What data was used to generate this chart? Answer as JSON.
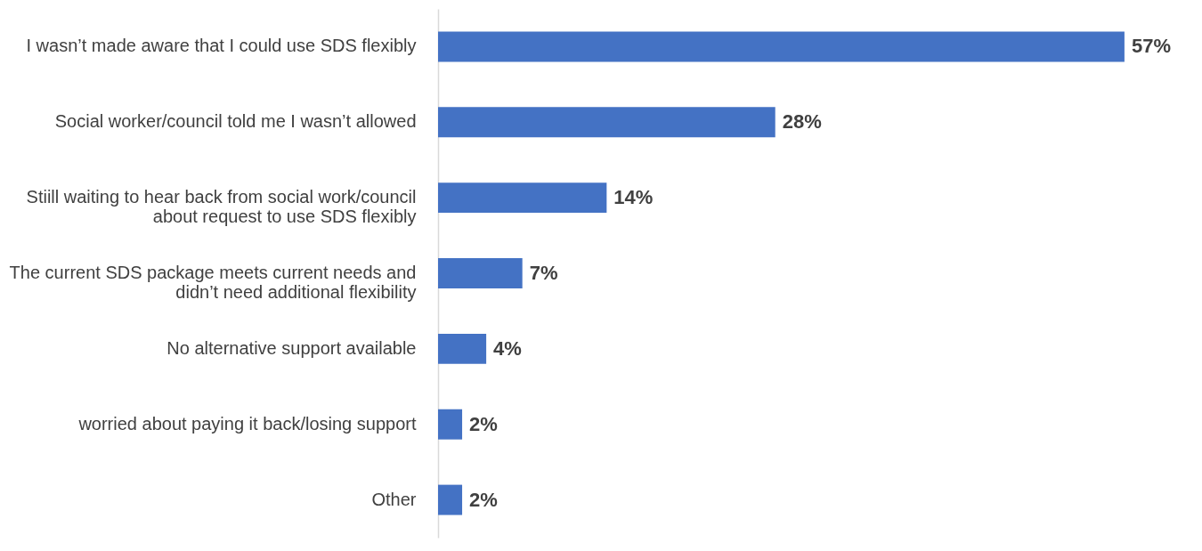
{
  "chart_data": {
    "type": "bar",
    "orientation": "horizontal",
    "categories": [
      "I wasn’t made aware that I could use SDS flexibly",
      "Social worker/council told me I wasn’t allowed",
      "Stiill waiting to hear back from social work/council about request to use SDS flexibly",
      "The current SDS package meets current needs and didn’t need additional flexibility",
      "No alternative support available",
      "worried about paying it back/losing support",
      "Other"
    ],
    "values": [
      57,
      28,
      14,
      7,
      4,
      2,
      2
    ],
    "value_labels": [
      "57%",
      "28%",
      "14%",
      "7%",
      "4%",
      "2%",
      "2%"
    ],
    "color": "#4472c4",
    "grid": false
  }
}
